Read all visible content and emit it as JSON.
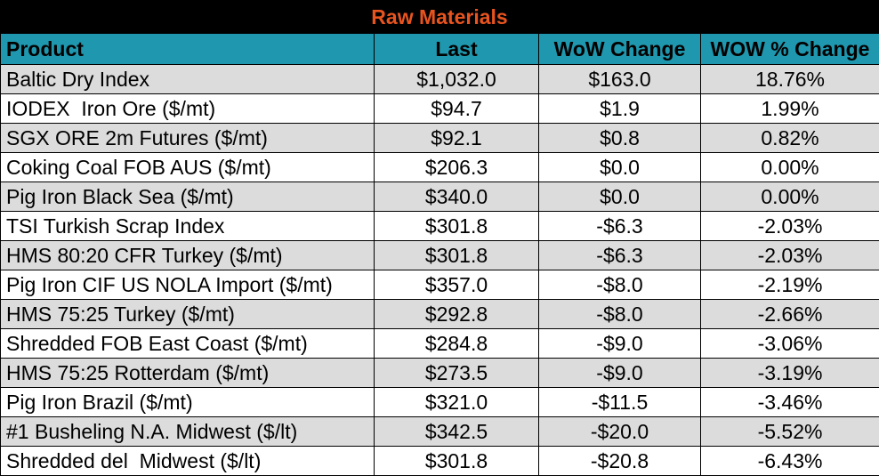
{
  "title": "Raw Materials",
  "headers": {
    "product": "Product",
    "last": "Last",
    "wow_change": "WoW Change",
    "wow_pct_change": "WOW % Change"
  },
  "rows": [
    {
      "product": "Baltic Dry Index",
      "last": "$1,032.0",
      "wow_change": "$163.0",
      "wow_pct": "18.76%"
    },
    {
      "product": "IODEX  Iron Ore ($/mt)",
      "last": "$94.7",
      "wow_change": "$1.9",
      "wow_pct": "1.99%"
    },
    {
      "product": "SGX ORE 2m Futures ($/mt)",
      "last": "$92.1",
      "wow_change": "$0.8",
      "wow_pct": "0.82%"
    },
    {
      "product": "Coking Coal FOB AUS ($/mt)",
      "last": "$206.3",
      "wow_change": "$0.0",
      "wow_pct": "0.00%"
    },
    {
      "product": "Pig Iron Black Sea ($/mt)",
      "last": "$340.0",
      "wow_change": "$0.0",
      "wow_pct": "0.00%"
    },
    {
      "product": "TSI Turkish Scrap Index",
      "last": "$301.8",
      "wow_change": "-$6.3",
      "wow_pct": "-2.03%"
    },
    {
      "product": "HMS 80:20 CFR Turkey ($/mt)",
      "last": "$301.8",
      "wow_change": "-$6.3",
      "wow_pct": "-2.03%"
    },
    {
      "product": "Pig Iron CIF US NOLA Import ($/mt)",
      "last": "$357.0",
      "wow_change": "-$8.0",
      "wow_pct": "-2.19%"
    },
    {
      "product": "HMS 75:25 Turkey ($/mt)",
      "last": "$292.8",
      "wow_change": "-$8.0",
      "wow_pct": "-2.66%"
    },
    {
      "product": "Shredded FOB East Coast ($/mt)",
      "last": "$284.8",
      "wow_change": "-$9.0",
      "wow_pct": "-3.06%"
    },
    {
      "product": "HMS 75:25 Rotterdam ($/mt)",
      "last": "$273.5",
      "wow_change": "-$9.0",
      "wow_pct": "-3.19%"
    },
    {
      "product": "Pig Iron Brazil ($/mt)",
      "last": "$321.0",
      "wow_change": "-$11.5",
      "wow_pct": "-3.46%"
    },
    {
      "product": "#1 Busheling N.A. Midwest ($/lt)",
      "last": "$342.5",
      "wow_change": "-$20.0",
      "wow_pct": "-5.52%"
    },
    {
      "product": "Shredded del  Midwest ($/lt)",
      "last": "$301.8",
      "wow_change": "-$20.8",
      "wow_pct": "-6.43%"
    }
  ],
  "colors": {
    "title_bg": "#000000",
    "title_text": "#e8541f",
    "header_bg": "#1f97ae",
    "shaded_row": "#dcdcdc"
  }
}
